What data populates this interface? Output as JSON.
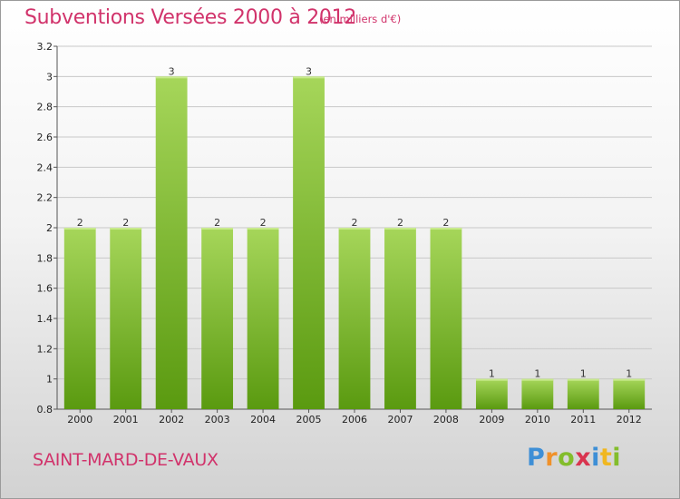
{
  "title": "Subventions Versées 2000 à 2012",
  "subtitle": "(en milliers d'€)",
  "commune": "SAINT-MARD-DE-VAUX",
  "logo": {
    "letters": [
      "P",
      "r",
      "o",
      "x",
      "i",
      "t",
      "i"
    ]
  },
  "colors": {
    "title": "#d1336b",
    "bar_light": "#a6d65a",
    "bar_dark": "#5a9a10",
    "grid": "#c8c8c8"
  },
  "chart_data": {
    "type": "bar",
    "title": "Subventions Versées 2000 à 2012",
    "subtitle": "(en milliers d'€)",
    "categories": [
      "2000",
      "2001",
      "2002",
      "2003",
      "2004",
      "2005",
      "2006",
      "2007",
      "2008",
      "2009",
      "2010",
      "2011",
      "2012"
    ],
    "values": [
      2,
      2,
      3,
      2,
      2,
      3,
      2,
      2,
      2,
      1,
      1,
      1,
      1
    ],
    "data_labels": [
      "2",
      "2",
      "3",
      "2",
      "2",
      "3",
      "2",
      "2",
      "2",
      "1",
      "1",
      "1",
      "1"
    ],
    "ylim": [
      0.8,
      3.2
    ],
    "yticks": [
      0.8,
      1,
      1.2,
      1.4,
      1.6,
      1.8,
      2,
      2.2,
      2.4,
      2.6,
      2.8,
      3,
      3.2
    ],
    "ytick_labels": [
      "0.8",
      "1",
      "1.2",
      "1.4",
      "1.6",
      "1.8",
      "2",
      "2.2",
      "2.4",
      "2.6",
      "2.8",
      "3",
      "3.2"
    ],
    "grid": true,
    "xlabel": "",
    "ylabel": ""
  }
}
